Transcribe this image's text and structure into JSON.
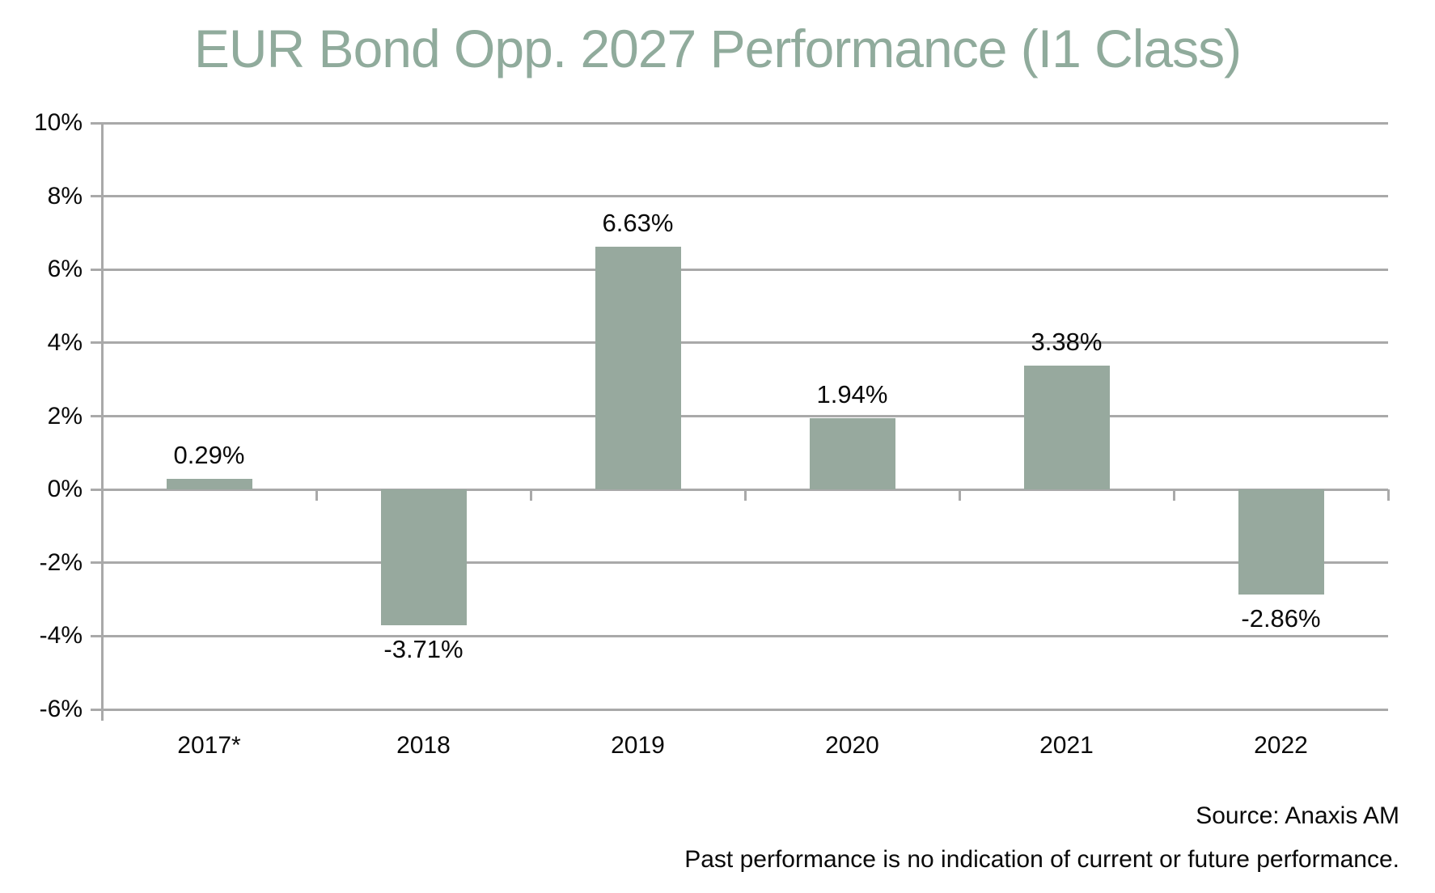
{
  "title": "EUR Bond Opp. 2027 Performance (I1 Class)",
  "footer": {
    "source": "Source: Anaxis AM",
    "disclaimer": "Past performance is no indication of current or future performance."
  },
  "colors": {
    "title": "#90AB9C",
    "bar": "#97A99E",
    "gridline": "#A9A9A9",
    "axis": "#A9A9A9",
    "label_text": "#0A0A0A"
  },
  "chart_data": {
    "type": "bar",
    "title": "EUR Bond Opp. 2027 Performance (I1 Class)",
    "categories": [
      "2017*",
      "2018",
      "2019",
      "2020",
      "2021",
      "2022"
    ],
    "values": [
      0.29,
      -3.71,
      6.63,
      1.94,
      3.38,
      -2.86
    ],
    "data_labels": [
      "0.29%",
      "-3.71%",
      "6.63%",
      "1.94%",
      "3.38%",
      "-2.86%"
    ],
    "xlabel": "",
    "ylabel": "",
    "ylim": [
      -6,
      10
    ],
    "ytick_step": 2,
    "ytick_labels": [
      "10%",
      "8%",
      "6%",
      "4%",
      "2%",
      "0%",
      "-2%",
      "-4%",
      "-6%"
    ],
    "grid": true,
    "legend_position": "none",
    "bar_baseline": 0
  }
}
